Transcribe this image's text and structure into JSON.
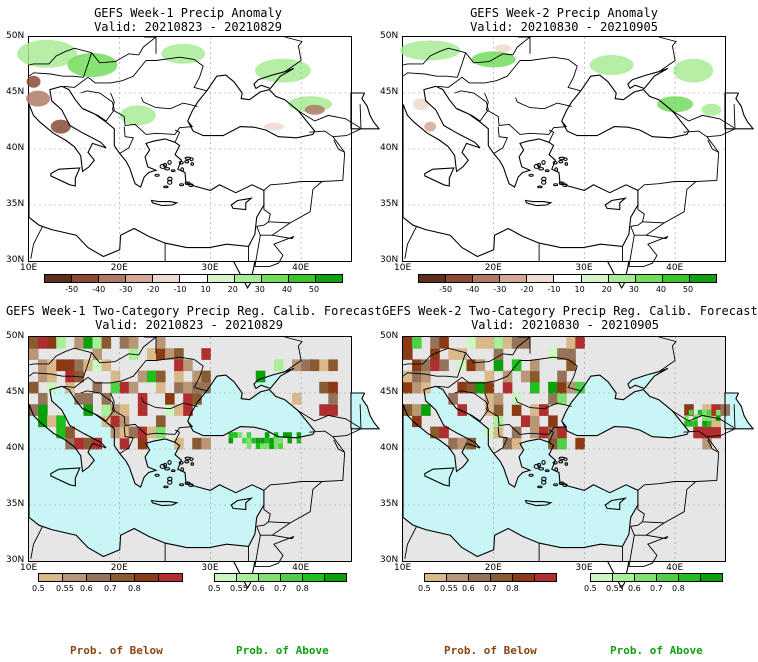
{
  "panels": {
    "tl": {
      "title": "GEFS Week-1 Precip Anomaly",
      "valid": "Valid: 20210823 - 20210829"
    },
    "tr": {
      "title": "GEFS Week-2 Precip Anomaly",
      "valid": "Valid: 20210830 - 20210905"
    },
    "bl": {
      "title": "GEFS Week-1 Two-Category Precip Reg. Calib. Forecast",
      "valid": "Valid: 20210823 - 20210829"
    },
    "br": {
      "title": "GEFS Week-2 Two-Category Precip Reg. Calib. Forecast",
      "valid": "Valid: 20210830 - 20210905"
    }
  },
  "axes": {
    "lat": [
      "50N",
      "45N",
      "40N",
      "35N",
      "30N"
    ],
    "lon": [
      "10E",
      "20E",
      "30E",
      "40E"
    ]
  },
  "anomaly_colorbar": {
    "ticks": [
      "-50",
      "-40",
      "-30",
      "-20",
      "-10",
      "10",
      "20",
      "30",
      "40",
      "50"
    ],
    "colors": [
      "#5e2d1e",
      "#8a4a36",
      "#b07a67",
      "#d3a898",
      "#efd8d0",
      "#ffffff",
      "#d6f5cc",
      "#a8ec96",
      "#72dc5c",
      "#3cc42c",
      "#10a010"
    ]
  },
  "prob_below": {
    "ticks": [
      "0.5",
      "0.55",
      "0.6",
      "0.7",
      "0.8"
    ],
    "colors": [
      "#d9b98c",
      "#b99776",
      "#94735a",
      "#8a5a30",
      "#8c3a14",
      "#b02e2e"
    ]
  },
  "prob_above": {
    "ticks": [
      "0.5",
      "0.55",
      "0.6",
      "0.7",
      "0.8"
    ],
    "colors": [
      "#ccf7c0",
      "#a8ef9a",
      "#7ee06e",
      "#4ed046",
      "#1fbf1f",
      "#0aa00a"
    ]
  },
  "legend": {
    "below_label": "Prob. of Below",
    "above_label": "Prob. of Above",
    "below_color": "#8b4513",
    "above_color": "#10a010"
  },
  "colors": {
    "sea": "#c8f6f6",
    "land_gray": "#e6e6e6",
    "grid": "#9a9a9a"
  }
}
